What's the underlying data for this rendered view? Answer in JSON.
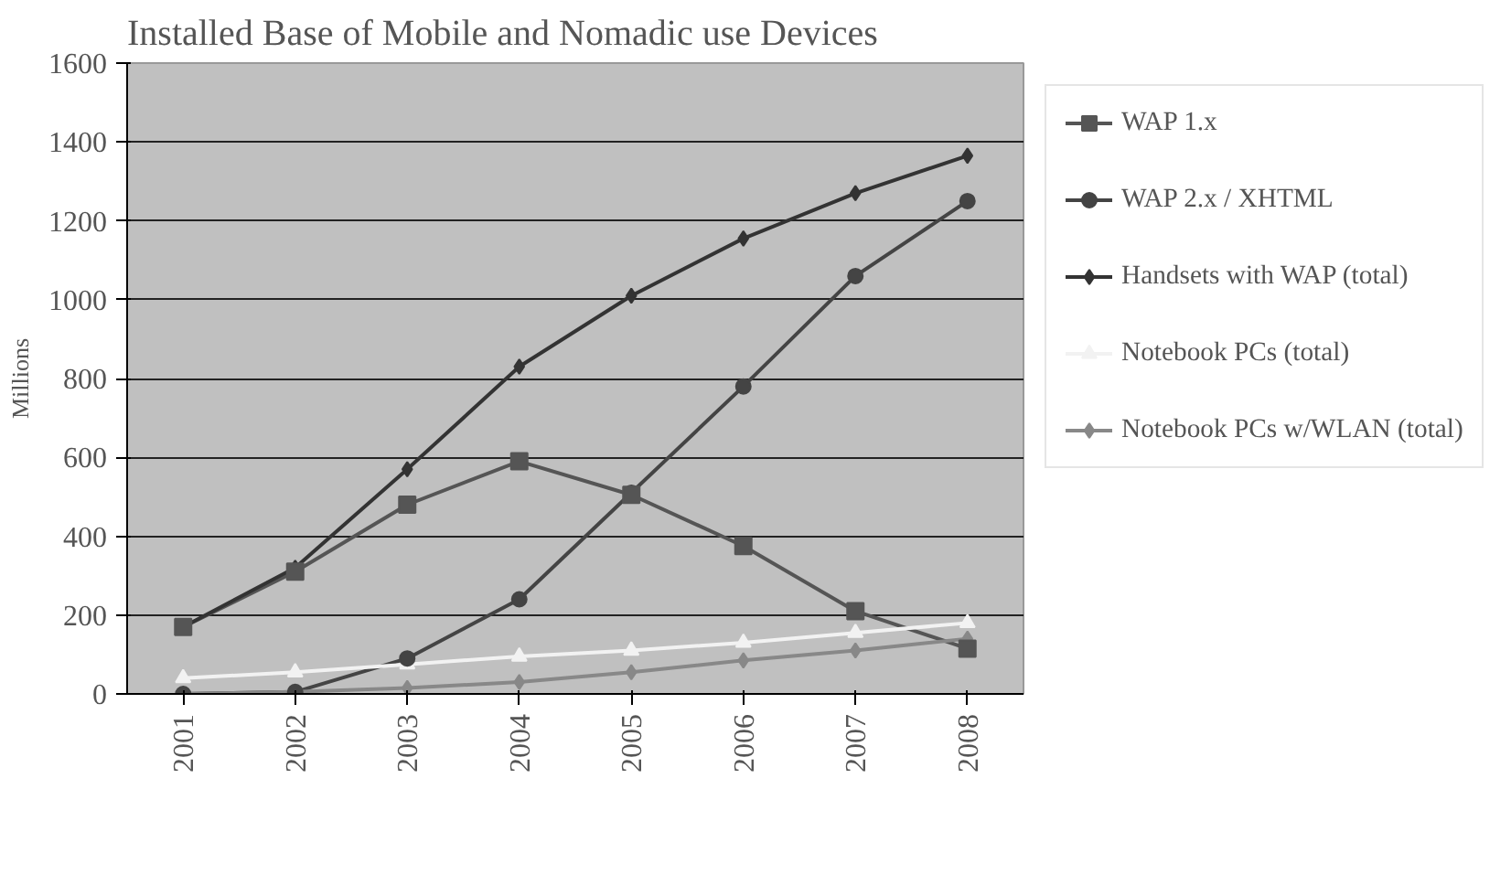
{
  "chart_data": {
    "type": "line",
    "title": "Installed Base of Mobile and Nomadic use Devices",
    "ylabel": "Millions",
    "categories": [
      "2001",
      "2002",
      "2003",
      "2004",
      "2005",
      "2006",
      "2007",
      "2008"
    ],
    "series": [
      {
        "name": "WAP 1.x",
        "color": "#555555",
        "marker": "square",
        "values": [
          170,
          310,
          480,
          590,
          505,
          375,
          210,
          115
        ]
      },
      {
        "name": "WAP 2.x / XHTML",
        "color": "#444444",
        "marker": "circle",
        "values": [
          0,
          5,
          90,
          240,
          510,
          780,
          1060,
          1250
        ]
      },
      {
        "name": "Handsets with WAP (total)",
        "color": "#333333",
        "marker": "diamond",
        "values": [
          170,
          320,
          570,
          830,
          1010,
          1155,
          1270,
          1365
        ]
      },
      {
        "name": "Notebook PCs (total)",
        "color": "#f2f2f2",
        "marker": "triangle",
        "values": [
          40,
          55,
          75,
          95,
          110,
          130,
          155,
          180
        ]
      },
      {
        "name": "Notebook PCs w/WLAN (total)",
        "color": "#888888",
        "marker": "diamond",
        "values": [
          0,
          5,
          15,
          30,
          55,
          85,
          110,
          140
        ]
      }
    ],
    "ylim": [
      0,
      1600
    ],
    "yticks": [
      0,
      200,
      400,
      600,
      800,
      1000,
      1200,
      1400,
      1600
    ],
    "grid": "y",
    "legend": "right",
    "line_style": "solid"
  }
}
